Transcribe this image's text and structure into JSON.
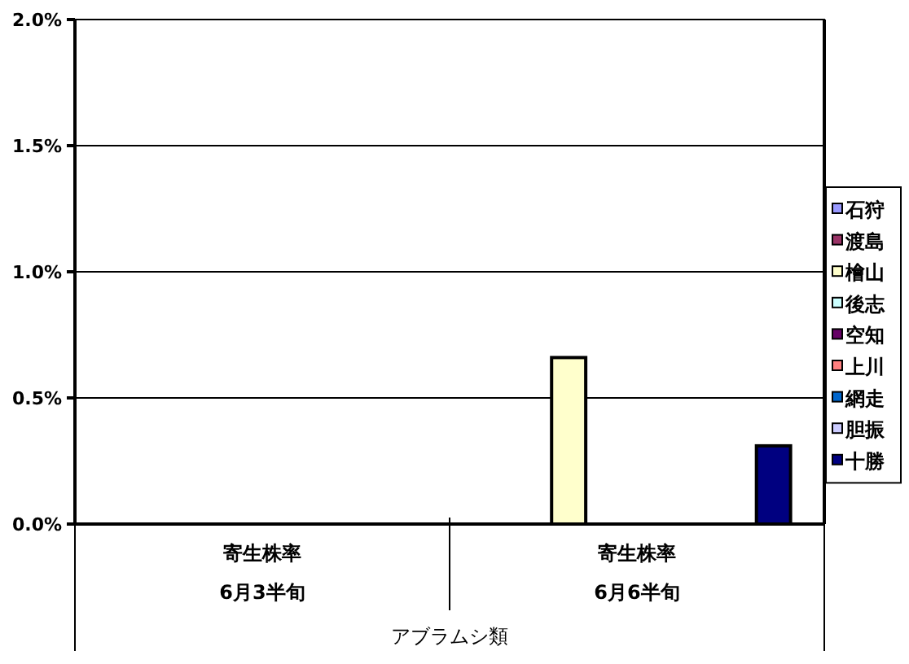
{
  "chart_data": {
    "type": "bar",
    "xlabel": "アブラムシ類",
    "categories": [
      "寄生株率\n6月3半旬",
      "寄生株率\n6月6半旬"
    ],
    "series": [
      {
        "name": "石狩",
        "color": "#9999ff",
        "values": [
          0,
          0
        ]
      },
      {
        "name": "渡島",
        "color": "#993366",
        "values": [
          0,
          0
        ]
      },
      {
        "name": "檜山",
        "color": "#ffffcc",
        "values": [
          0,
          0.66
        ]
      },
      {
        "name": "後志",
        "color": "#ccffff",
        "values": [
          0,
          0
        ]
      },
      {
        "name": "空知",
        "color": "#660066",
        "values": [
          0,
          0
        ]
      },
      {
        "name": "上川",
        "color": "#ff8080",
        "values": [
          0,
          0
        ]
      },
      {
        "name": "網走",
        "color": "#0066cc",
        "values": [
          0,
          0
        ]
      },
      {
        "name": "胆振",
        "color": "#ccccff",
        "values": [
          0,
          0
        ]
      },
      {
        "name": "十勝",
        "color": "#000080",
        "values": [
          0,
          0.31
        ]
      }
    ],
    "ylim": [
      0,
      2
    ],
    "yticks": [
      {
        "value": 0,
        "label": "0.0%"
      },
      {
        "value": 0.5,
        "label": "0.5%"
      },
      {
        "value": 1,
        "label": "1.0%"
      },
      {
        "value": 1.5,
        "label": "1.5%"
      },
      {
        "value": 2,
        "label": "2.0%"
      }
    ],
    "grid": "y",
    "legend": "right"
  }
}
